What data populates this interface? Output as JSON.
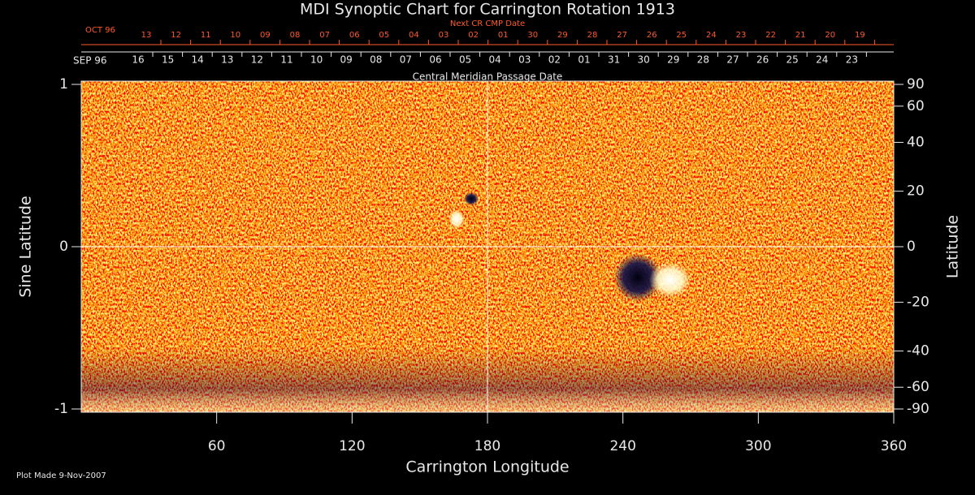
{
  "chart_data": {
    "type": "synoptic-map",
    "title": "MDI Synoptic Chart for Carrington Rotation 1913",
    "xlabel": "Carrington Longitude",
    "ylabel": "Sine Latitude",
    "y2label": "Latitude",
    "xlim": [
      0,
      360
    ],
    "xticks": [
      60,
      120,
      180,
      240,
      300,
      360
    ],
    "ylim": [
      -1,
      1
    ],
    "yticks": [
      -1,
      0,
      1
    ],
    "y2lim": [
      -90,
      90
    ],
    "y2scale": "sine",
    "y2ticks": [
      -90,
      -60,
      -40,
      -20,
      0,
      20,
      40,
      60,
      90
    ],
    "top_axis": {
      "label": "Central Meridian Passage Date",
      "month": "SEP 96",
      "categories": [
        "16",
        "15",
        "14",
        "13",
        "12",
        "11",
        "10",
        "09",
        "08",
        "07",
        "06",
        "05",
        "04",
        "03",
        "02",
        "01",
        "31",
        "30",
        "29",
        "28",
        "27",
        "26",
        "25",
        "24",
        "23"
      ]
    },
    "next_axis": {
      "label": "Next CR CMP Date",
      "month": "OCT 96",
      "categories": [
        "13",
        "12",
        "11",
        "10",
        "09",
        "08",
        "07",
        "06",
        "05",
        "04",
        "03",
        "02",
        "01",
        "30",
        "29",
        "28",
        "27",
        "26",
        "25",
        "24",
        "23",
        "22",
        "21",
        "20",
        "19"
      ]
    },
    "footer": "Plot Made  9-Nov-2007"
  }
}
